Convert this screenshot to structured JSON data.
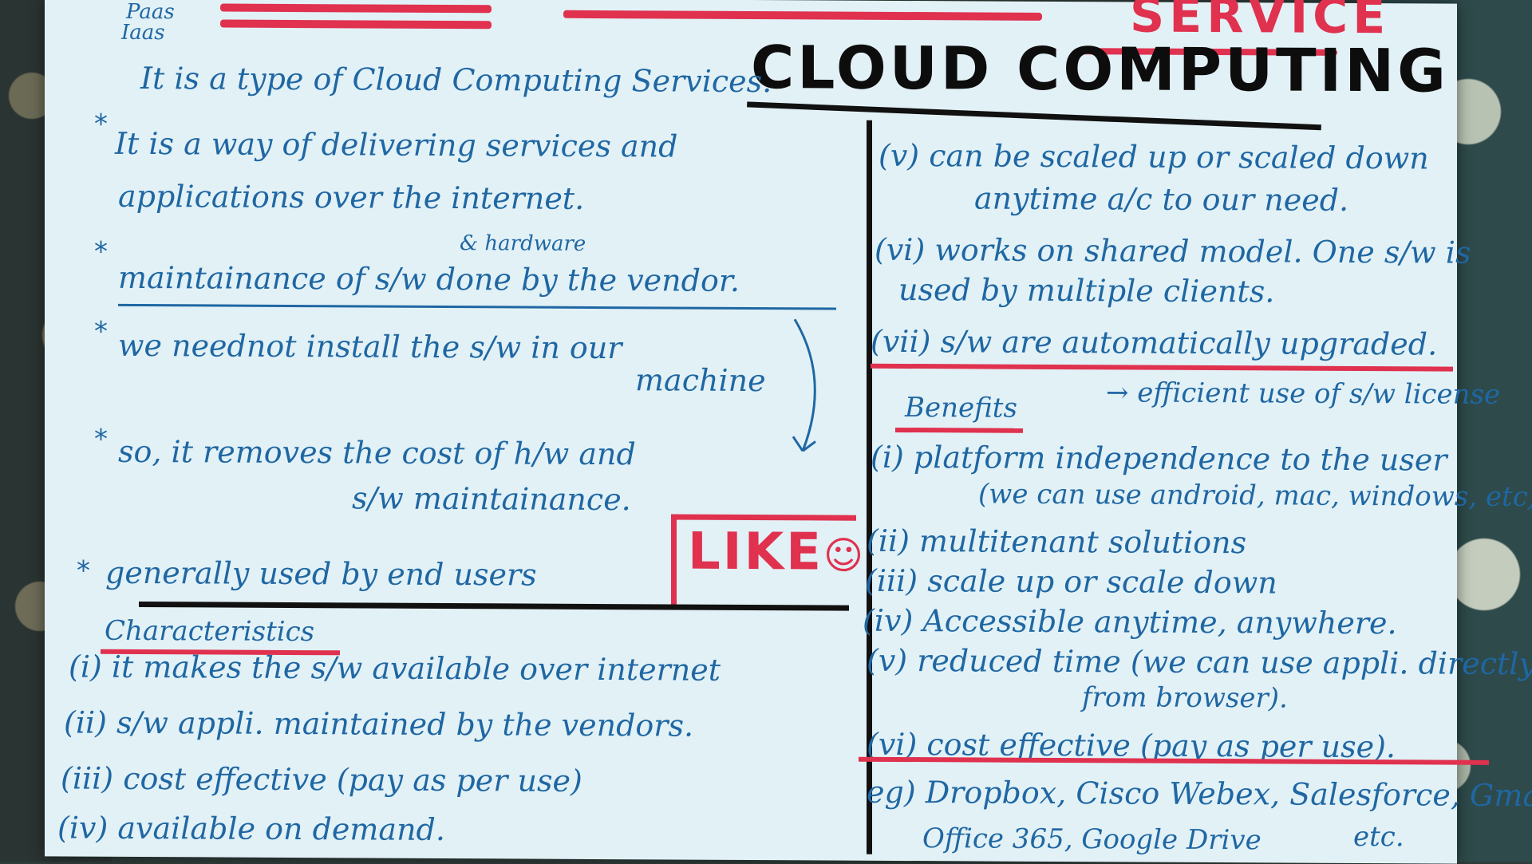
{
  "corner_notes": [
    "Paas",
    "Iaas"
  ],
  "top_heading": "SERVICE",
  "title": "CLOUD COMPUTING",
  "intro": "It is a type of Cloud Computing Services.",
  "left_points": [
    {
      "line1": "It is a way of delivering services and",
      "line2": "applications over the internet."
    },
    {
      "insert": "& hardware",
      "line1": "maintainance of s/w done by the vendor."
    },
    {
      "line1": "we neednot install the s/w in our",
      "line2": "machine"
    },
    {
      "line1": "so, it removes the cost of h/w and",
      "line2": "s/w maintainance."
    },
    {
      "line1": "generally used by end users"
    }
  ],
  "like": "LIKE",
  "characteristics_heading": "Characteristics",
  "characteristics": [
    "(i) it makes the s/w available over internet",
    "(ii) s/w appli. maintained by the vendors.",
    "(iii) cost effective (pay as per use)",
    "(iv) available on demand."
  ],
  "right_points": [
    {
      "line1": "(v) can be scaled up or scaled down",
      "line2": "anytime a/c to our need."
    },
    {
      "line1": "(vi) works on shared model. One s/w is",
      "line2": "used by multiple clients."
    },
    {
      "line1": "(vii) s/w are automatically upgraded."
    }
  ],
  "efficient_note": "→ efficient use of s/w license",
  "benefits_heading": "Benefits",
  "benefits": [
    {
      "line1": "(i) platform independence to the user",
      "line2": "(we can use android, mac, windows, etc)"
    },
    {
      "line1": "(ii) multitenant solutions"
    },
    {
      "line1": "(iii) scale up or scale down"
    },
    {
      "line1": "(iv) Accessible anytime, anywhere."
    },
    {
      "line1": "(v) reduced time (we can use appli. directly",
      "line2": "from browser)."
    },
    {
      "line1": "(vi) cost effective (pay as per use)."
    }
  ],
  "examples": {
    "line1": "eg) Dropbox, Cisco Webex, Salesforce, Gmail,",
    "line2": "Office 365, Google Drive",
    "etc": "etc."
  }
}
